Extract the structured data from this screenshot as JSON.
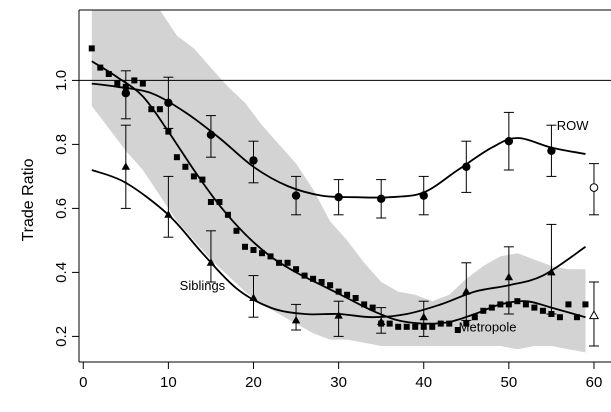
{
  "chart_data": {
    "type": "line",
    "title": "",
    "xlabel": "",
    "ylabel": "Trade Ratio",
    "xlim": [
      -0.5,
      62
    ],
    "ylim": [
      0.12,
      1.22
    ],
    "x_ticks": [
      0,
      10,
      20,
      30,
      40,
      50,
      60
    ],
    "y_ticks": [
      0.2,
      0.4,
      0.6,
      0.8,
      1.0
    ],
    "x_tick_labels": [
      "0",
      "10",
      "20",
      "30",
      "40",
      "50",
      "60"
    ],
    "y_tick_labels": [
      "0.2",
      "0.4",
      "0.6",
      "0.8",
      "1.0"
    ],
    "reference_line": 1.0,
    "grid": false,
    "legend": "none",
    "band": {
      "color": "#d3d3d3",
      "x": [
        1,
        3,
        5,
        7,
        9,
        11,
        13,
        15,
        17,
        19,
        21,
        23,
        25,
        27,
        29,
        31,
        33,
        35,
        37,
        39,
        41,
        43,
        45,
        47,
        49,
        51,
        53,
        55,
        57,
        59
      ],
      "upper": [
        1.25,
        1.25,
        1.25,
        1.25,
        1.22,
        1.14,
        1.1,
        1.04,
        0.98,
        0.93,
        0.86,
        0.8,
        0.74,
        0.66,
        0.56,
        0.5,
        0.43,
        0.37,
        0.34,
        0.33,
        0.31,
        0.33,
        0.38,
        0.42,
        0.45,
        0.46,
        0.44,
        0.42,
        0.41,
        0.41
      ],
      "lower": [
        0.92,
        0.85,
        0.78,
        0.72,
        0.64,
        0.56,
        0.5,
        0.44,
        0.39,
        0.34,
        0.3,
        0.27,
        0.24,
        0.21,
        0.19,
        0.19,
        0.18,
        0.17,
        0.17,
        0.17,
        0.17,
        0.17,
        0.17,
        0.17,
        0.17,
        0.16,
        0.17,
        0.17,
        0.16,
        0.15
      ]
    },
    "series": [
      {
        "name": "ROW",
        "marker": "circle",
        "points": {
          "x": [
            5,
            10,
            15,
            20,
            25,
            30,
            35,
            40,
            45,
            50,
            55
          ],
          "y": [
            0.96,
            0.93,
            0.83,
            0.75,
            0.64,
            0.635,
            0.63,
            0.64,
            0.73,
            0.81,
            0.78
          ],
          "err_low": [
            0.88,
            0.85,
            0.76,
            0.68,
            0.58,
            0.58,
            0.57,
            0.58,
            0.65,
            0.72,
            0.7
          ],
          "err_high": [
            1.03,
            1.01,
            0.89,
            0.81,
            0.7,
            0.69,
            0.69,
            0.7,
            0.81,
            0.9,
            0.86
          ]
        },
        "smooth": {
          "x": [
            1,
            4,
            8,
            12,
            16,
            20,
            24,
            28,
            32,
            36,
            40,
            44,
            48,
            51,
            55,
            59
          ],
          "y": [
            0.99,
            0.98,
            0.96,
            0.9,
            0.82,
            0.73,
            0.67,
            0.64,
            0.635,
            0.635,
            0.65,
            0.72,
            0.79,
            0.82,
            0.79,
            0.77
          ]
        },
        "endpoint": {
          "x": 60,
          "y": 0.665,
          "err_low": 0.58,
          "err_high": 0.74,
          "marker": "open-circle"
        }
      },
      {
        "name": "Siblings",
        "marker": "triangle",
        "points": {
          "x": [
            5,
            10,
            15,
            20,
            25,
            30,
            35,
            40,
            45,
            50,
            55
          ],
          "y": [
            0.73,
            0.58,
            0.43,
            0.32,
            0.25,
            0.265,
            0.245,
            0.26,
            0.34,
            0.385,
            0.4
          ],
          "err_low": [
            0.6,
            0.51,
            0.37,
            0.26,
            0.22,
            0.2,
            0.21,
            0.2,
            0.25,
            0.27,
            0.27
          ],
          "err_high": [
            0.86,
            0.7,
            0.53,
            0.39,
            0.3,
            0.31,
            0.29,
            0.31,
            0.43,
            0.48,
            0.55
          ]
        },
        "smooth": {
          "x": [
            1,
            5,
            10,
            14,
            18,
            22,
            26,
            30,
            34,
            38,
            42,
            46,
            50,
            54,
            59
          ],
          "y": [
            0.72,
            0.68,
            0.58,
            0.46,
            0.35,
            0.29,
            0.27,
            0.27,
            0.26,
            0.27,
            0.3,
            0.34,
            0.36,
            0.39,
            0.48
          ]
        },
        "endpoint": {
          "x": 60,
          "y": 0.265,
          "err_low": 0.17,
          "err_high": 0.37,
          "marker": "open-triangle"
        }
      },
      {
        "name": "Metropole",
        "marker": "square",
        "points": {
          "x": [
            1,
            2,
            3,
            4,
            5,
            6,
            7,
            8,
            9,
            10,
            11,
            12,
            13,
            14,
            15,
            16,
            17,
            18,
            19,
            20,
            21,
            22,
            23,
            24,
            25,
            26,
            27,
            28,
            29,
            30,
            31,
            32,
            33,
            34,
            35,
            36,
            37,
            38,
            39,
            40,
            41,
            42,
            43,
            44,
            45,
            46,
            47,
            48,
            49,
            50,
            51,
            52,
            53,
            54,
            55,
            56,
            57,
            58,
            59
          ],
          "y": [
            1.1,
            1.04,
            1.02,
            0.99,
            0.98,
            1.0,
            0.99,
            0.91,
            0.91,
            0.84,
            0.76,
            0.73,
            0.7,
            0.69,
            0.62,
            0.62,
            0.58,
            0.53,
            0.48,
            0.47,
            0.46,
            0.45,
            0.43,
            0.43,
            0.41,
            0.39,
            0.38,
            0.37,
            0.36,
            0.34,
            0.33,
            0.32,
            0.3,
            0.29,
            0.24,
            0.24,
            0.23,
            0.23,
            0.23,
            0.23,
            0.23,
            0.24,
            0.24,
            0.22,
            0.24,
            0.26,
            0.28,
            0.29,
            0.3,
            0.3,
            0.31,
            0.3,
            0.29,
            0.28,
            0.27,
            0.26,
            0.3,
            0.26,
            0.3
          ]
        },
        "smooth": {
          "x": [
            1,
            4,
            7,
            10,
            13,
            16,
            19,
            22,
            25,
            28,
            31,
            34,
            37,
            40,
            43,
            46,
            49,
            52,
            55,
            59
          ],
          "y": [
            1.06,
            1.01,
            0.95,
            0.84,
            0.72,
            0.61,
            0.52,
            0.45,
            0.4,
            0.36,
            0.32,
            0.28,
            0.25,
            0.24,
            0.245,
            0.27,
            0.3,
            0.31,
            0.29,
            0.26
          ]
        }
      }
    ]
  }
}
